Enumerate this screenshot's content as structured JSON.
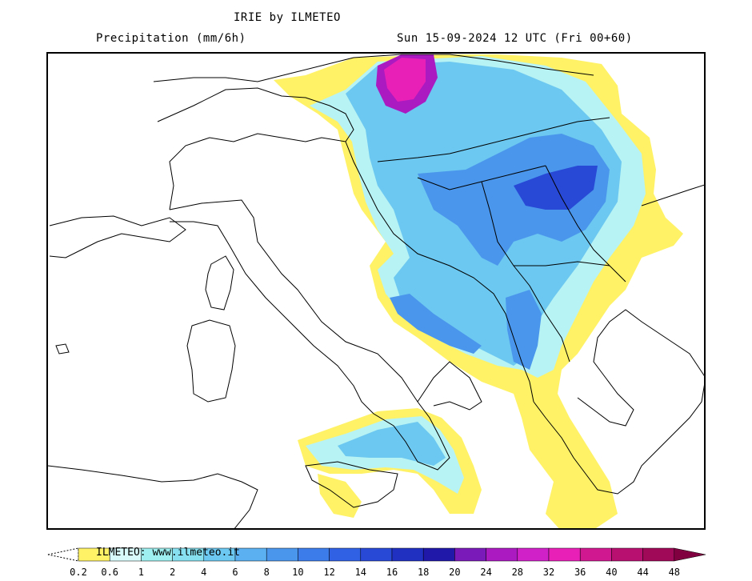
{
  "header": {
    "title": "IRIE by ILMETEO",
    "variable": "Precipitation (mm/6h)",
    "valid_time": "Sun 15-09-2024 12 UTC (Fri 00+60)"
  },
  "legend": {
    "credit": "ILMETEO: www.ilmeteo.it",
    "ticks": [
      "0.2",
      "0.6",
      "1",
      "2",
      "4",
      "6",
      "8",
      "10",
      "12",
      "14",
      "16",
      "18",
      "20",
      "24",
      "28",
      "32",
      "36",
      "40",
      "44",
      "48"
    ],
    "colors": [
      "#fff266",
      "#d9fafa",
      "#9ef0f0",
      "#86e0ef",
      "#6cc8f0",
      "#5ab0f0",
      "#4a96ec",
      "#3c7cea",
      "#3060e4",
      "#2848d6",
      "#2030c0",
      "#2018a8",
      "#7a1ab8",
      "#aa1ac0",
      "#d020c8",
      "#e820b8",
      "#d01890",
      "#b81070",
      "#a00858",
      "#800040"
    ]
  },
  "map_labels": {
    "region": "Italy and Balkans"
  }
}
